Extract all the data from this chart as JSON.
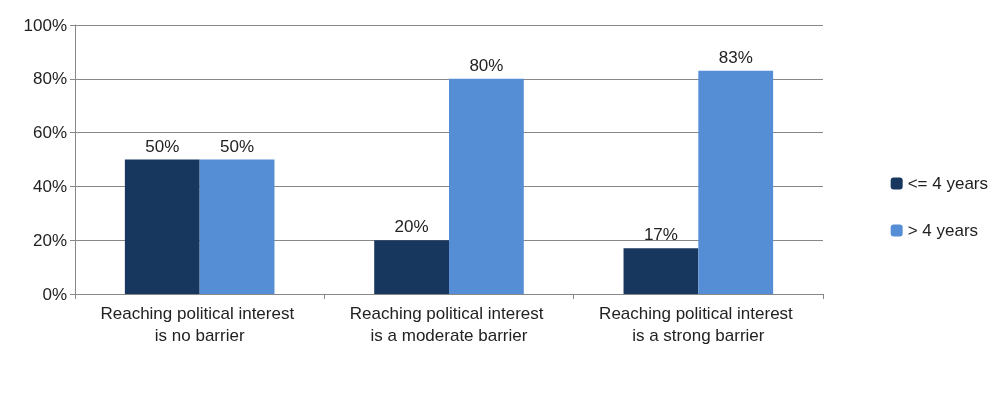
{
  "chart_data": {
    "type": "bar",
    "categories": [
      "Reaching political interest is no barrier",
      "Reaching political interest is a moderate barrier",
      "Reaching political interest is a strong barrier"
    ],
    "series": [
      {
        "name": "<= 4 years",
        "color": "#17375e",
        "values": [
          50,
          20,
          17
        ],
        "value_labels": [
          "50%",
          "20%",
          "17%"
        ]
      },
      {
        "name": "> 4 years",
        "color": "#558ed5",
        "values": [
          50,
          80,
          83
        ],
        "value_labels": [
          "50%",
          "80%",
          "83%"
        ]
      }
    ],
    "ylim": [
      0,
      100
    ],
    "yticks": [
      {
        "value": 0,
        "label": "0%"
      },
      {
        "value": 20,
        "label": "20%"
      },
      {
        "value": 40,
        "label": "40%"
      },
      {
        "value": 60,
        "label": "60%"
      },
      {
        "value": 80,
        "label": "80%"
      },
      {
        "value": 100,
        "label": "100%"
      }
    ],
    "grid": "y",
    "legend": "right"
  }
}
